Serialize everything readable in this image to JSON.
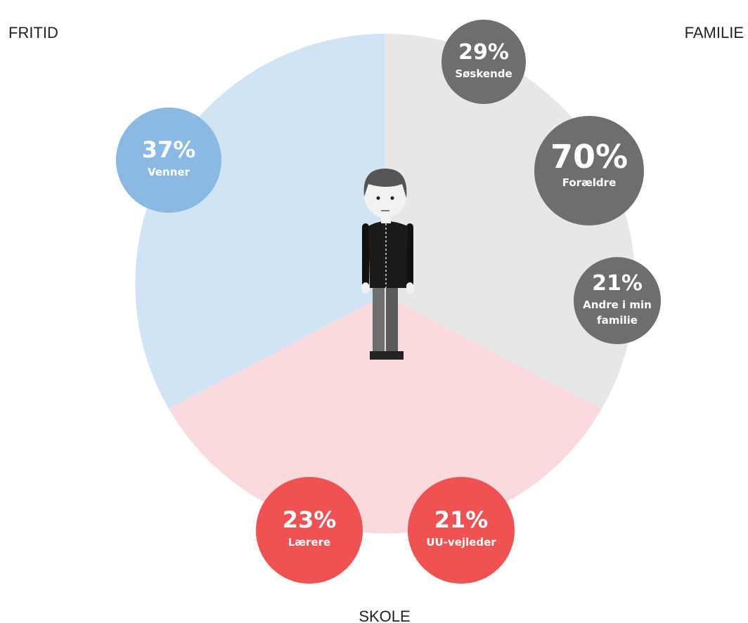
{
  "areas": {
    "fritid": "FRITID",
    "familie": "FAMILIE",
    "skole": "SKOLE"
  },
  "bubbles": [
    {
      "percent": "29%",
      "label": [
        "Søskende"
      ]
    },
    {
      "percent": "70%",
      "label": [
        "Forældre"
      ]
    },
    {
      "percent": "21%",
      "label": [
        "Andre i min",
        "familie"
      ]
    },
    {
      "percent": "37%",
      "label": [
        "Venner"
      ]
    },
    {
      "percent": "23%",
      "label": [
        "Lærere"
      ]
    },
    {
      "percent": "21%",
      "label": [
        "UU-vejleder"
      ]
    }
  ]
}
